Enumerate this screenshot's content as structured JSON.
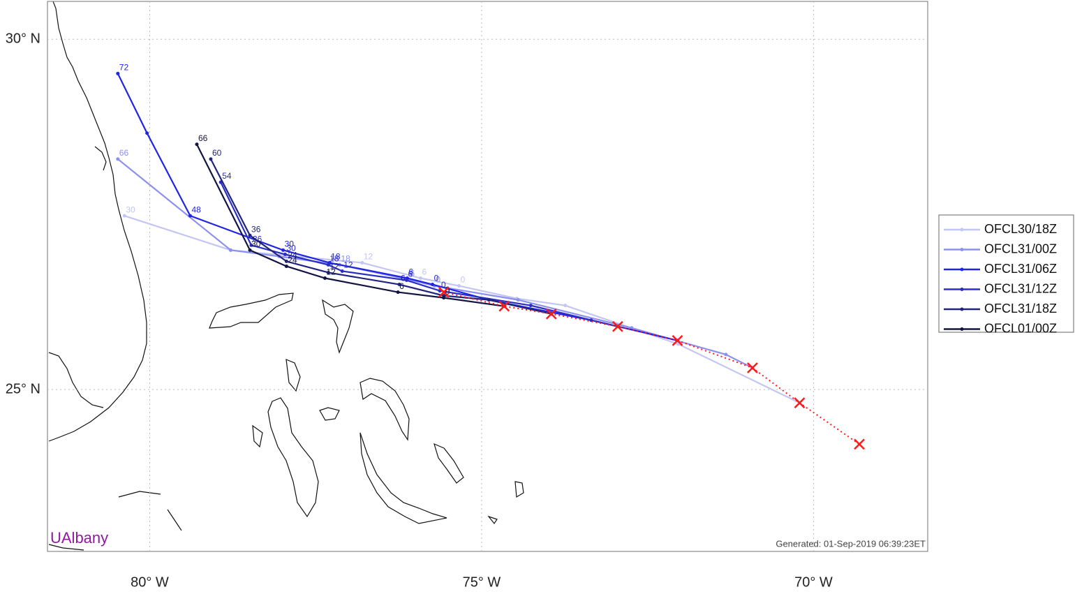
{
  "chart_data": {
    "type": "track-map",
    "xlim": [
      -81.54,
      -68.28
    ],
    "ylim": [
      22.69,
      30.54
    ],
    "xticks": [
      {
        "value": -80,
        "label": "80° W"
      },
      {
        "value": -75,
        "label": "75° W"
      },
      {
        "value": -70,
        "label": "70° W"
      }
    ],
    "yticks": [
      {
        "value": 25,
        "label": "25° N"
      },
      {
        "value": 30,
        "label": "30° N"
      }
    ],
    "grid": true,
    "legend": "right",
    "watermark": "UAlbany",
    "footer": "Generated: 01-Sep-2019 06:39:23ET",
    "best_track": {
      "color": "#ff1a1a",
      "x": [
        -75.57,
        -74.66,
        -73.95,
        -72.95,
        -72.05,
        -70.92,
        -70.21,
        -69.31
      ],
      "y": [
        26.39,
        26.19,
        26.08,
        25.9,
        25.7,
        25.31,
        24.81,
        24.22
      ]
    },
    "series": [
      {
        "name": "OFCL30/18Z",
        "color": "#c3c6f5",
        "x": [
          -70.21,
          -72.04,
          -73.74,
          -74.47,
          -75.34,
          -75.92,
          -76.8,
          -78.78,
          -80.38
        ],
        "y": [
          24.81,
          25.65,
          26.2,
          26.3,
          26.48,
          26.59,
          26.81,
          26.99,
          27.48
        ],
        "labels": [
          null,
          null,
          null,
          null,
          0,
          6,
          12,
          null,
          30
        ]
      },
      {
        "name": "OFCL31/00Z",
        "color": "#8c90ee",
        "x": [
          -70.92,
          -71.32,
          -72.74,
          -74.45,
          -75.71,
          -76.1,
          -77.14,
          -78.05,
          -78.78,
          -80.48
        ],
        "y": [
          25.31,
          25.5,
          25.88,
          26.28,
          26.48,
          26.57,
          26.78,
          26.9,
          26.99,
          28.29
        ],
        "labels": [
          null,
          null,
          null,
          null,
          0,
          6,
          18,
          null,
          null,
          66
        ]
      },
      {
        "name": "OFCL31/06Z",
        "color": "#1f24e6",
        "x": [
          -72.05,
          -73.35,
          -74.89,
          -75.74,
          -76.12,
          -77.29,
          -77.99,
          -79.39,
          -80.04,
          -80.48
        ],
        "y": [
          25.7,
          25.99,
          26.28,
          26.5,
          26.59,
          26.81,
          26.99,
          27.48,
          28.66,
          29.51
        ],
        "labels": [
          null,
          null,
          null,
          0,
          6,
          18,
          30,
          48,
          null,
          72
        ]
      },
      {
        "name": "OFCL31/12Z",
        "color": "#2a2ec4",
        "x": [
          -72.95,
          -74.26,
          -75.63,
          -76.13,
          -77.1,
          -77.31,
          -77.96,
          -78.47,
          -78.93
        ],
        "y": [
          25.9,
          26.2,
          26.41,
          26.56,
          26.69,
          26.78,
          26.93,
          27.06,
          27.96
        ],
        "labels": [
          null,
          null,
          0,
          6,
          12,
          18,
          30,
          36,
          54
        ]
      },
      {
        "name": "OFCL31/18Z",
        "color": "#21247c",
        "x": [
          -73.95,
          -74.89,
          -75.57,
          -76.24,
          -77.31,
          -77.94,
          -78.49,
          -79.08
        ],
        "y": [
          26.08,
          26.28,
          26.34,
          26.5,
          26.67,
          26.83,
          27.2,
          28.29
        ],
        "labels": [
          null,
          null,
          0,
          6,
          12,
          24,
          36,
          60
        ]
      },
      {
        "name": "OFCL01/00Z",
        "color": "#121540",
        "x": [
          -74.66,
          -75.57,
          -76.26,
          -77.36,
          -77.94,
          -78.49,
          -79.29
        ],
        "y": [
          26.19,
          26.31,
          26.39,
          26.59,
          26.76,
          26.99,
          28.5
        ],
        "labels": [
          null,
          0,
          6,
          12,
          24,
          30,
          66
        ]
      }
    ]
  }
}
